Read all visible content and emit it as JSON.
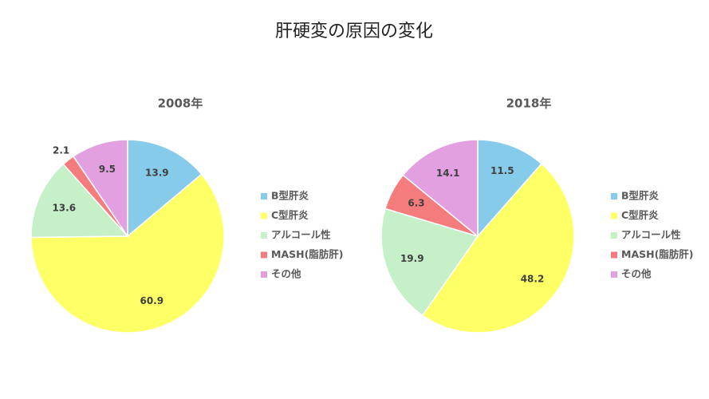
{
  "title": "肝硬変の原因の変化",
  "chart_data": [
    {
      "type": "pie",
      "title": "2008年",
      "categories": [
        "B型肝炎",
        "C型肝炎",
        "アルコール性",
        "MASH(脂肪肝)",
        "その他"
      ],
      "values": [
        13.9,
        60.9,
        13.6,
        2.1,
        9.5
      ],
      "colors": [
        "#87cbeb",
        "#ffff66",
        "#c5f0c8",
        "#f47c7c",
        "#e3a0e0"
      ],
      "legend": "right"
    },
    {
      "type": "pie",
      "title": "2018年",
      "categories": [
        "B型肝炎",
        "C型肝炎",
        "アルコール性",
        "MASH(脂肪肝)",
        "その他"
      ],
      "values": [
        11.5,
        48.2,
        19.9,
        6.3,
        14.1
      ],
      "colors": [
        "#87cbeb",
        "#ffff66",
        "#c5f0c8",
        "#f47c7c",
        "#e3a0e0"
      ],
      "legend": "right"
    }
  ]
}
